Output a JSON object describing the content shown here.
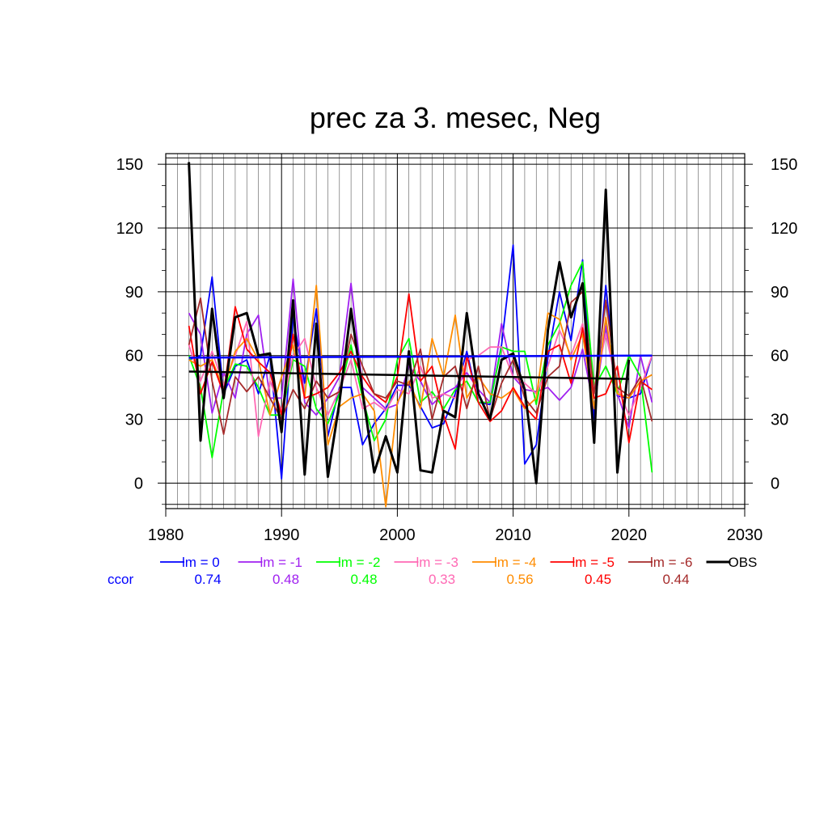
{
  "chart_data": {
    "type": "line",
    "title": "prec za 3. mesec, Neg",
    "xlabel": "",
    "ylabel": "",
    "xlim": [
      1980,
      2030
    ],
    "ylim": [
      -12,
      155
    ],
    "xticks": [
      1980,
      1990,
      2000,
      2010,
      2020,
      2030
    ],
    "yticks": [
      0,
      30,
      60,
      90,
      120,
      150
    ],
    "grid": true,
    "legend_placement": "bottom",
    "ccor_label": "ccor",
    "series": [
      {
        "name": "lm = 0",
        "color": "#0000ff",
        "ccor": "0.74",
        "x": [
          1982,
          1983,
          1984,
          1985,
          1986,
          1987,
          1988,
          1989,
          1990,
          1991,
          1992,
          1993,
          1994,
          1995,
          1996,
          1997,
          1998,
          1999,
          2000,
          2001,
          2002,
          2003,
          2004,
          2005,
          2006,
          2007,
          2008,
          2009,
          2010,
          2011,
          2012,
          2013,
          2014,
          2015,
          2016,
          2017,
          2018,
          2019,
          2020,
          2021,
          2022
        ],
        "y": [
          58,
          60,
          97,
          42,
          55,
          58,
          42,
          60,
          2,
          78,
          47,
          82,
          22,
          45,
          45,
          18,
          28,
          35,
          46,
          46,
          36,
          26,
          28,
          42,
          62,
          38,
          37,
          65,
          112,
          9,
          18,
          59,
          90,
          67,
          105,
          30,
          93,
          41,
          40,
          42,
          60
        ]
      },
      {
        "name": "lm = -1",
        "color": "#a020f0",
        "ccor": "0.48",
        "x": [
          1982,
          1983,
          1984,
          1985,
          1986,
          1987,
          1988,
          1989,
          1990,
          1991,
          1992,
          1993,
          1994,
          1995,
          1996,
          1997,
          1998,
          1999,
          2000,
          2001,
          2002,
          2003,
          2004,
          2005,
          2006,
          2007,
          2008,
          2009,
          2010,
          2011,
          2012,
          2013,
          2014,
          2015,
          2016,
          2017,
          2018,
          2019,
          2020,
          2021,
          2022
        ],
        "y": [
          80,
          70,
          33,
          52,
          40,
          70,
          79,
          40,
          40,
          96,
          38,
          32,
          40,
          50,
          94,
          45,
          40,
          35,
          37,
          55,
          48,
          37,
          42,
          45,
          52,
          44,
          38,
          75,
          50,
          44,
          43,
          45,
          39,
          45,
          63,
          35,
          74,
          42,
          26,
          60,
          38
        ]
      },
      {
        "name": "lm = -2",
        "color": "#00ff00",
        "ccor": "0.48",
        "x": [
          1982,
          1983,
          1984,
          1985,
          1986,
          1987,
          1988,
          1989,
          1990,
          1991,
          1992,
          1993,
          1994,
          1995,
          1996,
          1997,
          1998,
          1999,
          2000,
          2001,
          2002,
          2003,
          2004,
          2005,
          2006,
          2007,
          2008,
          2009,
          2010,
          2011,
          2012,
          2013,
          2014,
          2015,
          2016,
          2017,
          2018,
          2019,
          2020,
          2021,
          2022
        ],
        "y": [
          60,
          45,
          12,
          44,
          56,
          55,
          45,
          32,
          32,
          58,
          55,
          35,
          28,
          42,
          65,
          40,
          20,
          30,
          58,
          68,
          38,
          43,
          35,
          44,
          48,
          38,
          38,
          64,
          62,
          62,
          37,
          65,
          75,
          93,
          104,
          45,
          55,
          42,
          60,
          50,
          5
        ]
      },
      {
        "name": "lm = -3",
        "color": "#ff69b4",
        "ccor": "0.33",
        "x": [
          1982,
          1983,
          1984,
          1985,
          1986,
          1987,
          1988,
          1989,
          1990,
          1991,
          1992,
          1993,
          1994,
          1995,
          1996,
          1997,
          1998,
          1999,
          2000,
          2001,
          2002,
          2003,
          2004,
          2005,
          2006,
          2007,
          2008,
          2009,
          2010,
          2011,
          2012,
          2013,
          2014,
          2015,
          2016,
          2017,
          2018,
          2019,
          2020,
          2021,
          2022
        ],
        "y": [
          65,
          48,
          62,
          46,
          60,
          76,
          22,
          48,
          34,
          60,
          68,
          45,
          32,
          44,
          58,
          35,
          38,
          34,
          44,
          42,
          55,
          40,
          42,
          40,
          58,
          60,
          64,
          64,
          50,
          47,
          42,
          55,
          72,
          60,
          75,
          44,
          70,
          45,
          32,
          45,
          60
        ]
      },
      {
        "name": "lm = -4",
        "color": "#ff8c00",
        "ccor": "0.56",
        "x": [
          1982,
          1983,
          1984,
          1985,
          1986,
          1987,
          1988,
          1989,
          1990,
          1991,
          1992,
          1993,
          1994,
          1995,
          1996,
          1997,
          1998,
          1999,
          2000,
          2001,
          2002,
          2003,
          2004,
          2005,
          2006,
          2007,
          2008,
          2009,
          2010,
          2011,
          2012,
          2013,
          2014,
          2015,
          2016,
          2017,
          2018,
          2019,
          2020,
          2021,
          2022
        ],
        "y": [
          58,
          55,
          58,
          44,
          62,
          68,
          58,
          32,
          50,
          65,
          40,
          93,
          18,
          36,
          40,
          42,
          34,
          -11,
          38,
          48,
          35,
          68,
          50,
          79,
          40,
          50,
          42,
          40,
          44,
          35,
          40,
          80,
          77,
          58,
          70,
          35,
          78,
          42,
          40,
          48,
          51
        ]
      },
      {
        "name": "lm = -5",
        "color": "#ff0000",
        "ccor": "0.45",
        "x": [
          1982,
          1983,
          1984,
          1985,
          1986,
          1987,
          1988,
          1989,
          1990,
          1991,
          1992,
          1993,
          1994,
          1995,
          1996,
          1997,
          1998,
          1999,
          2000,
          2001,
          2002,
          2003,
          2004,
          2005,
          2006,
          2007,
          2008,
          2009,
          2010,
          2011,
          2012,
          2013,
          2014,
          2015,
          2016,
          2017,
          2018,
          2019,
          2020,
          2021,
          2022
        ],
        "y": [
          74,
          42,
          57,
          42,
          83,
          63,
          57,
          52,
          32,
          70,
          40,
          42,
          45,
          52,
          62,
          50,
          42,
          38,
          50,
          89,
          48,
          55,
          32,
          16,
          60,
          38,
          29,
          34,
          45,
          36,
          30,
          62,
          65,
          47,
          73,
          40,
          42,
          55,
          19,
          48,
          44
        ]
      },
      {
        "name": "lm = -6",
        "color": "#a52a2a",
        "ccor": "0.44",
        "x": [
          1982,
          1983,
          1984,
          1985,
          1986,
          1987,
          1988,
          1989,
          1990,
          1991,
          1992,
          1993,
          1994,
          1995,
          1996,
          1997,
          1998,
          1999,
          2000,
          2001,
          2002,
          2003,
          2004,
          2005,
          2006,
          2007,
          2008,
          2009,
          2010,
          2011,
          2012,
          2013,
          2014,
          2015,
          2016,
          2017,
          2018,
          2019,
          2020,
          2021,
          2022
        ],
        "y": [
          65,
          87,
          48,
          23,
          50,
          43,
          50,
          40,
          30,
          44,
          35,
          48,
          40,
          43,
          70,
          55,
          42,
          40,
          48,
          46,
          63,
          30,
          50,
          55,
          35,
          55,
          30,
          47,
          58,
          40,
          33,
          50,
          55,
          85,
          90,
          42,
          86,
          45,
          41,
          50,
          29
        ]
      },
      {
        "name": "OBS",
        "color": "#000000",
        "ccor": "",
        "x": [
          1982,
          1983,
          1984,
          1985,
          1986,
          1987,
          1988,
          1989,
          1990,
          1991,
          1992,
          1993,
          1994,
          1995,
          1996,
          1997,
          1998,
          1999,
          2000,
          2001,
          2002,
          2003,
          2004,
          2005,
          2006,
          2007,
          2008,
          2009,
          2010,
          2011,
          2012,
          2013,
          2014,
          2015,
          2016,
          2017,
          2018,
          2019,
          2020
        ],
        "y": [
          151,
          20,
          82,
          40,
          78,
          80,
          60,
          61,
          24,
          86,
          4,
          75,
          3,
          38,
          82,
          43,
          5,
          22,
          5,
          62,
          6,
          5,
          34,
          31,
          80,
          42,
          30,
          58,
          61,
          44,
          0,
          72,
          104,
          78,
          94,
          19,
          138,
          5,
          58
        ]
      }
    ],
    "trend_lines": [
      {
        "series": "lm = 0",
        "color": "#0000ff",
        "x": [
          1982,
          2022
        ],
        "y": [
          59,
          60
        ]
      },
      {
        "series": "OBS",
        "color": "#000000",
        "x": [
          1982,
          2020
        ],
        "y": [
          52.5,
          49
        ]
      }
    ]
  }
}
